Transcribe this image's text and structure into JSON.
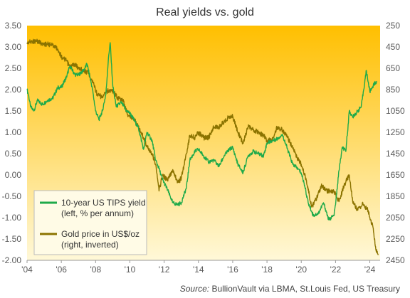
{
  "chart_data": {
    "type": "line",
    "title": "Real yields vs. gold",
    "source_label": "Source:",
    "source_text": "BullionVault via LBMA, St.Louis Fed, US Treasury",
    "x_range": [
      2004,
      2024.6
    ],
    "x_ticks": [
      {
        "value": 2004,
        "label": "'04"
      },
      {
        "value": 2006,
        "label": "'06"
      },
      {
        "value": 2008,
        "label": "'08"
      },
      {
        "value": 2010,
        "label": "'10"
      },
      {
        "value": 2012,
        "label": "'12"
      },
      {
        "value": 2014,
        "label": "'14"
      },
      {
        "value": 2016,
        "label": "'16"
      },
      {
        "value": 2018,
        "label": "'18"
      },
      {
        "value": 2020,
        "label": "'20"
      },
      {
        "value": 2022,
        "label": "'22"
      },
      {
        "value": 2024,
        "label": "'24"
      }
    ],
    "y_left": {
      "range": [
        -2.0,
        3.5
      ],
      "ticks": [
        "3.50",
        "3.00",
        "2.50",
        "2.00",
        "1.50",
        "1.00",
        "0.50",
        "0.00",
        "-0.50",
        "-1.00",
        "-1.50",
        "-2.00"
      ]
    },
    "y_right": {
      "range": [
        250,
        2450
      ],
      "inverted": true,
      "ticks": [
        "250",
        "450",
        "650",
        "850",
        "1050",
        "1250",
        "1450",
        "1650",
        "1850",
        "2050",
        "2250",
        "2450"
      ]
    },
    "grid": false,
    "legend_position": "bottom-left",
    "colors": {
      "background_top": "#ffbf00",
      "background_bottom": "#fff8d8",
      "tips": "#1faa4a",
      "gold": "#8b7300",
      "axis_text": "#5a5a5a"
    },
    "series": [
      {
        "name": "10-year US TIPS yield",
        "name_line2": "(left, % per annum)",
        "axis": "left",
        "x": [
          2004.0,
          2004.1,
          2004.2,
          2004.4,
          2004.6,
          2004.9,
          2005.2,
          2005.5,
          2005.8,
          2006.0,
          2006.3,
          2006.5,
          2006.8,
          2007.0,
          2007.3,
          2007.5,
          2007.8,
          2008.0,
          2008.2,
          2008.4,
          2008.6,
          2008.75,
          2008.85,
          2009.0,
          2009.2,
          2009.5,
          2009.8,
          2010.0,
          2010.3,
          2010.5,
          2010.8,
          2011.0,
          2011.3,
          2011.5,
          2011.7,
          2011.9,
          2012.2,
          2012.5,
          2012.8,
          2013.0,
          2013.3,
          2013.5,
          2013.8,
          2014.0,
          2014.3,
          2014.6,
          2014.9,
          2015.2,
          2015.5,
          2015.8,
          2016.0,
          2016.3,
          2016.6,
          2016.9,
          2017.2,
          2017.5,
          2017.8,
          2018.0,
          2018.3,
          2018.6,
          2018.9,
          2019.2,
          2019.5,
          2019.8,
          2020.0,
          2020.2,
          2020.4,
          2020.7,
          2021.0,
          2021.3,
          2021.6,
          2021.9,
          2022.0,
          2022.2,
          2022.4,
          2022.6,
          2022.8,
          2023.0,
          2023.3,
          2023.5,
          2023.8,
          2024.0,
          2024.2,
          2024.4
        ],
        "values": [
          2.0,
          1.85,
          1.6,
          1.5,
          1.75,
          1.65,
          1.75,
          1.8,
          2.05,
          2.05,
          2.3,
          2.55,
          2.35,
          2.35,
          2.45,
          2.6,
          2.05,
          1.5,
          1.3,
          1.5,
          1.9,
          2.75,
          3.1,
          2.1,
          1.6,
          1.7,
          1.5,
          1.45,
          1.25,
          1.1,
          0.6,
          1.0,
          0.8,
          0.35,
          0.15,
          -0.1,
          -0.35,
          -0.65,
          -0.7,
          -0.65,
          -0.3,
          0.35,
          0.55,
          0.6,
          0.45,
          0.3,
          0.35,
          0.2,
          0.45,
          0.6,
          0.65,
          0.25,
          0.05,
          0.45,
          0.55,
          0.5,
          0.45,
          0.75,
          0.8,
          0.85,
          0.95,
          0.6,
          0.25,
          0.15,
          0.05,
          -0.25,
          -0.65,
          -0.95,
          -0.9,
          -0.65,
          -1.05,
          -0.95,
          -0.7,
          0.1,
          0.65,
          0.55,
          1.5,
          1.35,
          1.5,
          1.6,
          2.45,
          1.95,
          2.1,
          2.2
        ]
      },
      {
        "name": "Gold price in US$/oz",
        "name_line2": "(right, inverted)",
        "axis": "right",
        "x": [
          2004.0,
          2004.3,
          2004.6,
          2004.9,
          2005.2,
          2005.5,
          2005.8,
          2006.0,
          2006.3,
          2006.5,
          2006.8,
          2007.0,
          2007.3,
          2007.6,
          2007.9,
          2008.1,
          2008.4,
          2008.7,
          2009.0,
          2009.3,
          2009.6,
          2009.9,
          2010.2,
          2010.5,
          2010.8,
          2011.0,
          2011.3,
          2011.5,
          2011.7,
          2011.9,
          2012.2,
          2012.5,
          2012.8,
          2013.0,
          2013.3,
          2013.5,
          2013.8,
          2014.0,
          2014.3,
          2014.6,
          2014.9,
          2015.2,
          2015.5,
          2015.8,
          2016.0,
          2016.3,
          2016.6,
          2016.9,
          2017.2,
          2017.5,
          2017.8,
          2018.0,
          2018.3,
          2018.6,
          2018.9,
          2019.2,
          2019.5,
          2019.8,
          2020.0,
          2020.3,
          2020.6,
          2020.9,
          2021.2,
          2021.5,
          2021.9,
          2022.2,
          2022.5,
          2022.8,
          2023.0,
          2023.3,
          2023.6,
          2023.9,
          2024.0,
          2024.2,
          2024.35,
          2024.5
        ],
        "values": [
          410,
          400,
          395,
          420,
          425,
          430,
          470,
          540,
          580,
          640,
          610,
          650,
          670,
          700,
          800,
          900,
          920,
          860,
          860,
          930,
          950,
          1100,
          1110,
          1200,
          1300,
          1380,
          1450,
          1550,
          1800,
          1650,
          1700,
          1600,
          1720,
          1680,
          1450,
          1280,
          1300,
          1250,
          1300,
          1300,
          1200,
          1200,
          1150,
          1100,
          1100,
          1250,
          1350,
          1200,
          1230,
          1250,
          1280,
          1330,
          1320,
          1200,
          1230,
          1300,
          1400,
          1500,
          1550,
          1700,
          1950,
          1870,
          1750,
          1800,
          1800,
          1900,
          1750,
          1650,
          1900,
          1980,
          1920,
          1980,
          2050,
          2150,
          2350,
          2400
        ]
      }
    ]
  }
}
